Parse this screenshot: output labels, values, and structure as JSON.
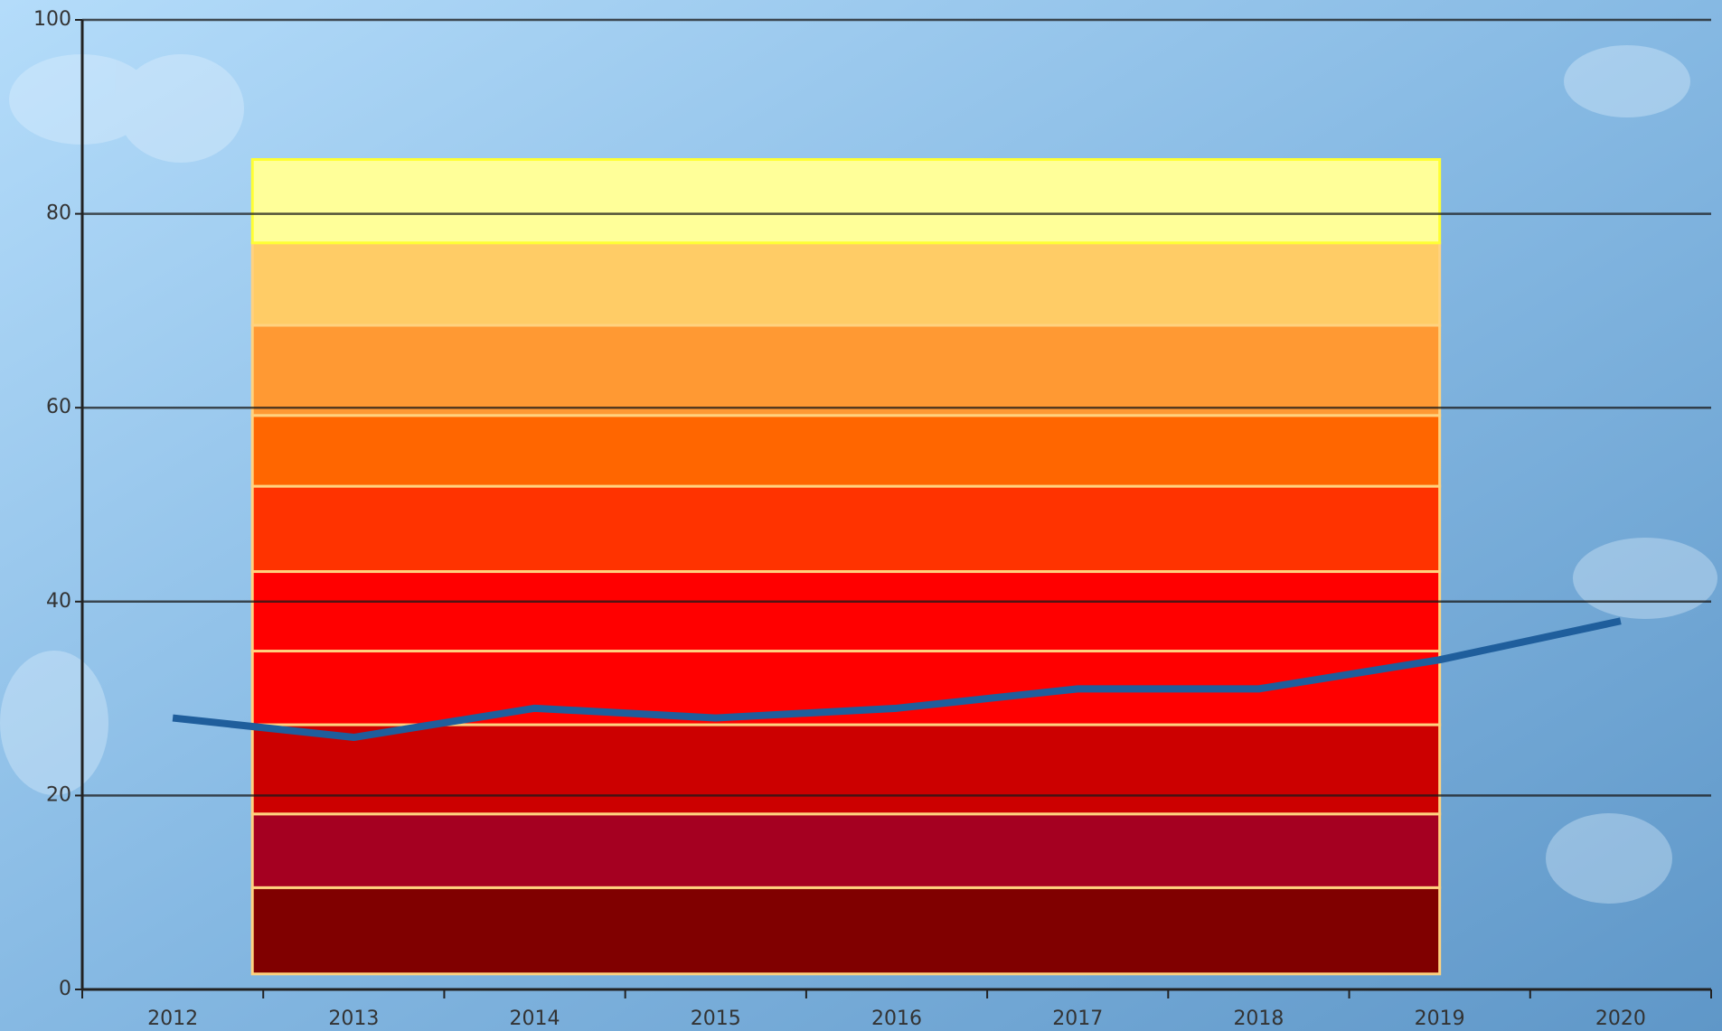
{
  "chart_data": {
    "type": "line",
    "categories": [
      "2012",
      "2013",
      "2014",
      "2015",
      "2016",
      "2017",
      "2018",
      "2019",
      "2020"
    ],
    "series": [
      {
        "color": "#1f5e9c",
        "values": [
          28,
          26,
          29,
          28,
          29,
          31,
          31,
          34,
          38
        ]
      }
    ],
    "bands": [
      {
        "from": 1.6,
        "to": 10.5,
        "color": "#800000"
      },
      {
        "from": 10.5,
        "to": 18.1,
        "color": "#a50021"
      },
      {
        "from": 18.1,
        "to": 27.3,
        "color": "#cc0000"
      },
      {
        "from": 27.3,
        "to": 34.9,
        "color": "#ff0000"
      },
      {
        "from": 34.9,
        "to": 43.1,
        "color": "#ff0000"
      },
      {
        "from": 43.1,
        "to": 51.9,
        "color": "#ff3300"
      },
      {
        "from": 51.9,
        "to": 59.2,
        "color": "#ff6600"
      },
      {
        "from": 59.2,
        "to": 68.5,
        "color": "#ff9933"
      },
      {
        "from": 68.5,
        "to": 77,
        "color": "#ffcc66"
      },
      {
        "from": 77,
        "to": 85.6,
        "color": "#ffff99"
      }
    ],
    "ylim": [
      0,
      100
    ],
    "yticks": [
      0,
      20,
      40,
      60,
      80,
      100
    ],
    "grid": true
  }
}
